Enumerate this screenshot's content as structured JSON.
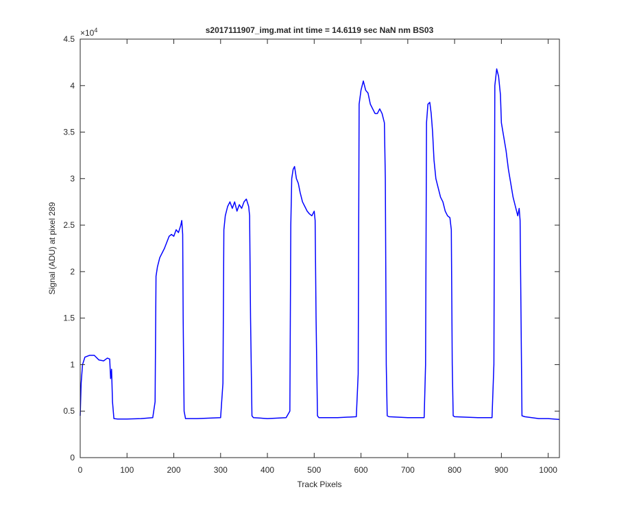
{
  "chart_data": {
    "type": "line",
    "title": "s2017111907_img.mat int time = 14.6119 sec  NaN nm BS03",
    "x_label": "Track Pixels",
    "y_label": "Signal (ADU) at pixel 289",
    "y_multiplier": "×10",
    "y_multiplier_exponent": "4",
    "xlim": [
      0,
      1024
    ],
    "ylim": [
      0,
      4.5
    ],
    "xticks": [
      0,
      100,
      200,
      300,
      400,
      500,
      600,
      700,
      800,
      900,
      1000
    ],
    "yticks": [
      0,
      0.5,
      1,
      1.5,
      2,
      2.5,
      3,
      3.5,
      4,
      4.5
    ],
    "x": [
      0,
      2,
      5,
      10,
      20,
      30,
      40,
      50,
      58,
      63,
      65,
      67,
      69,
      72,
      80,
      100,
      130,
      155,
      160,
      162,
      165,
      170,
      180,
      190,
      195,
      200,
      205,
      210,
      215,
      217,
      219,
      220,
      222,
      225,
      250,
      300,
      305,
      307,
      310,
      315,
      320,
      325,
      330,
      335,
      340,
      345,
      350,
      355,
      360,
      362,
      364,
      367,
      370,
      400,
      440,
      448,
      450,
      452,
      455,
      458,
      462,
      466,
      470,
      475,
      480,
      485,
      490,
      495,
      500,
      502,
      504,
      507,
      510,
      550,
      590,
      594,
      596,
      600,
      605,
      610,
      615,
      620,
      625,
      630,
      635,
      640,
      645,
      650,
      652,
      654,
      656,
      660,
      700,
      735,
      738,
      740,
      743,
      747,
      750,
      753,
      756,
      760,
      765,
      770,
      775,
      780,
      785,
      790,
      793,
      795,
      797,
      800,
      850,
      880,
      884,
      886,
      890,
      894,
      898,
      900,
      905,
      910,
      915,
      920,
      925,
      930,
      935,
      938,
      940,
      942,
      944,
      950,
      980,
      1000,
      1024
    ],
    "series": [
      {
        "color": "#0000ff",
        "values": [
          0.45,
          0.8,
          1.0,
          1.08,
          1.1,
          1.1,
          1.05,
          1.04,
          1.07,
          1.06,
          0.85,
          0.95,
          0.6,
          0.42,
          0.415,
          0.415,
          0.42,
          0.43,
          0.6,
          1.95,
          2.05,
          2.15,
          2.25,
          2.38,
          2.4,
          2.38,
          2.45,
          2.42,
          2.5,
          2.55,
          2.4,
          1.5,
          0.5,
          0.42,
          0.42,
          0.43,
          0.8,
          2.45,
          2.6,
          2.7,
          2.75,
          2.68,
          2.75,
          2.65,
          2.72,
          2.68,
          2.75,
          2.78,
          2.7,
          2.6,
          1.5,
          0.45,
          0.43,
          0.42,
          0.43,
          0.5,
          2.5,
          3.0,
          3.1,
          3.13,
          3.0,
          2.95,
          2.85,
          2.75,
          2.7,
          2.65,
          2.62,
          2.6,
          2.65,
          2.55,
          1.5,
          0.45,
          0.43,
          0.43,
          0.44,
          0.9,
          3.8,
          3.95,
          4.05,
          3.95,
          3.92,
          3.8,
          3.75,
          3.7,
          3.7,
          3.75,
          3.7,
          3.6,
          3.0,
          1.0,
          0.45,
          0.44,
          0.43,
          0.43,
          1.0,
          3.6,
          3.8,
          3.82,
          3.7,
          3.5,
          3.2,
          3.0,
          2.9,
          2.8,
          2.75,
          2.65,
          2.6,
          2.58,
          2.45,
          1.0,
          0.45,
          0.44,
          0.43,
          0.43,
          1.0,
          4.0,
          4.18,
          4.1,
          3.9,
          3.6,
          3.45,
          3.3,
          3.1,
          2.95,
          2.8,
          2.7,
          2.6,
          2.68,
          2.55,
          1.5,
          0.45,
          0.44,
          0.42,
          0.42,
          0.41
        ]
      }
    ]
  }
}
